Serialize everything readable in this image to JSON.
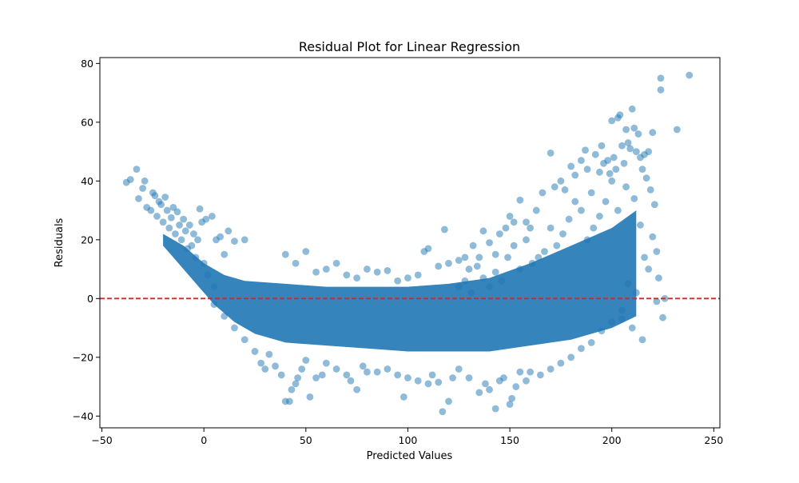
{
  "chart_data": {
    "type": "scatter",
    "title": "Residual Plot for Linear Regression",
    "xlabel": "Predicted Values",
    "ylabel": "Residuals",
    "xlim": [
      -51,
      253
    ],
    "ylim": [
      -44,
      82
    ],
    "xticks": [
      -50,
      0,
      50,
      100,
      150,
      200,
      250
    ],
    "yticks": [
      -40,
      -20,
      0,
      20,
      40,
      60,
      80
    ],
    "xtick_labels": [
      "−50",
      "0",
      "50",
      "100",
      "150",
      "200",
      "250"
    ],
    "ytick_labels": [
      "−40",
      "−20",
      "0",
      "20",
      "40",
      "60",
      "80"
    ],
    "reference_line": {
      "y": 0,
      "style": "dashed",
      "color": "#d62728"
    },
    "grid": false,
    "marker_color": "#1f77b4",
    "marker_alpha": 0.5,
    "series": [
      {
        "values_note": "",
        "points": [
          [
            -38,
            39.5
          ],
          [
            -36,
            40.5
          ],
          [
            -33,
            44
          ],
          [
            -32,
            34
          ],
          [
            -30,
            37.5
          ],
          [
            -29,
            40
          ],
          [
            -28,
            31
          ],
          [
            -26,
            30
          ],
          [
            -25,
            36
          ],
          [
            -24,
            35
          ],
          [
            -23,
            28
          ],
          [
            -22,
            33
          ],
          [
            -21,
            32
          ],
          [
            -20,
            26
          ],
          [
            -19,
            34.5
          ],
          [
            -18,
            30
          ],
          [
            -17,
            24
          ],
          [
            -16,
            27.5
          ],
          [
            -15,
            31
          ],
          [
            -14,
            22
          ],
          [
            -13,
            29.5
          ],
          [
            -12,
            25
          ],
          [
            -11,
            20
          ],
          [
            -10,
            27
          ],
          [
            -9,
            23
          ],
          [
            -8,
            17
          ],
          [
            -7,
            25
          ],
          [
            -6,
            18
          ],
          [
            -5,
            22
          ],
          [
            -4,
            14
          ],
          [
            -3,
            20
          ],
          [
            -2,
            30.5
          ],
          [
            -1,
            26
          ],
          [
            0,
            12
          ],
          [
            1,
            27
          ],
          [
            2,
            8
          ],
          [
            4,
            28
          ],
          [
            5,
            4
          ],
          [
            6,
            20
          ],
          [
            8,
            21
          ],
          [
            10,
            15
          ],
          [
            12,
            23
          ],
          [
            15,
            19.5
          ],
          [
            20,
            20
          ],
          [
            5,
            -2
          ],
          [
            10,
            -6
          ],
          [
            15,
            -10
          ],
          [
            20,
            -14
          ],
          [
            25,
            -18
          ],
          [
            28,
            -22
          ],
          [
            30,
            -24
          ],
          [
            32,
            -19
          ],
          [
            35,
            -23
          ],
          [
            38,
            -26
          ],
          [
            40,
            -35
          ],
          [
            42,
            -35
          ],
          [
            43,
            -31
          ],
          [
            45,
            -29
          ],
          [
            46,
            -27
          ],
          [
            48,
            -24
          ],
          [
            50,
            -21
          ],
          [
            52,
            -33.5
          ],
          [
            55,
            -27
          ],
          [
            58,
            -26
          ],
          [
            60,
            -22
          ],
          [
            65,
            -24
          ],
          [
            70,
            -26
          ],
          [
            72,
            -28
          ],
          [
            75,
            -31
          ],
          [
            78,
            -23
          ],
          [
            80,
            -25
          ],
          [
            85,
            -25
          ],
          [
            90,
            -24
          ],
          [
            95,
            -26
          ],
          [
            98,
            -33.5
          ],
          [
            100,
            -27
          ],
          [
            105,
            -28
          ],
          [
            110,
            -29
          ],
          [
            112,
            -26
          ],
          [
            115,
            -28.5
          ],
          [
            117,
            -38.5
          ],
          [
            120,
            -35
          ],
          [
            122,
            -27
          ],
          [
            125,
            -24
          ],
          [
            130,
            -27
          ],
          [
            135,
            -32
          ],
          [
            138,
            -29
          ],
          [
            140,
            -31
          ],
          [
            143,
            -37.5
          ],
          [
            145,
            -28
          ],
          [
            147,
            -27
          ],
          [
            150,
            -36
          ],
          [
            151,
            -34
          ],
          [
            153,
            -30
          ],
          [
            155,
            -25
          ],
          [
            158,
            -28
          ],
          [
            160,
            -25
          ],
          [
            165,
            -26
          ],
          [
            170,
            -24
          ],
          [
            175,
            -22
          ],
          [
            180,
            -20
          ],
          [
            185,
            -17
          ],
          [
            190,
            -15
          ],
          [
            195,
            -11
          ],
          [
            200,
            -8
          ],
          [
            205,
            -4
          ],
          [
            40,
            15
          ],
          [
            45,
            12
          ],
          [
            50,
            16
          ],
          [
            55,
            9
          ],
          [
            60,
            10
          ],
          [
            65,
            12
          ],
          [
            70,
            8
          ],
          [
            75,
            7
          ],
          [
            80,
            10
          ],
          [
            85,
            9
          ],
          [
            90,
            9.5
          ],
          [
            95,
            6
          ],
          [
            100,
            7
          ],
          [
            105,
            8
          ],
          [
            108,
            16
          ],
          [
            110,
            17
          ],
          [
            115,
            11
          ],
          [
            118,
            23.5
          ],
          [
            120,
            12
          ],
          [
            125,
            13
          ],
          [
            128,
            14
          ],
          [
            130,
            10
          ],
          [
            132,
            18
          ],
          [
            135,
            14
          ],
          [
            137,
            23
          ],
          [
            140,
            19
          ],
          [
            143,
            15
          ],
          [
            145,
            22
          ],
          [
            148,
            24
          ],
          [
            150,
            28
          ],
          [
            152,
            26
          ],
          [
            155,
            33.5
          ],
          [
            158,
            26
          ],
          [
            160,
            24
          ],
          [
            163,
            30
          ],
          [
            166,
            36
          ],
          [
            170,
            49.5
          ],
          [
            172,
            38
          ],
          [
            175,
            40
          ],
          [
            177,
            37
          ],
          [
            180,
            45
          ],
          [
            182,
            42
          ],
          [
            185,
            47
          ],
          [
            187,
            50.5
          ],
          [
            188,
            44
          ],
          [
            190,
            36
          ],
          [
            192,
            49
          ],
          [
            194,
            43
          ],
          [
            195,
            52
          ],
          [
            196,
            46
          ],
          [
            198,
            47
          ],
          [
            199,
            42.5
          ],
          [
            200,
            60.5
          ],
          [
            201,
            48
          ],
          [
            202,
            44
          ],
          [
            203,
            61.5
          ],
          [
            204,
            62.5
          ],
          [
            205,
            52
          ],
          [
            206,
            46
          ],
          [
            207,
            57.5
          ],
          [
            208,
            53
          ],
          [
            209,
            51
          ],
          [
            210,
            64.5
          ],
          [
            211,
            58
          ],
          [
            212,
            50
          ],
          [
            213,
            56
          ],
          [
            214,
            48
          ],
          [
            215,
            44
          ],
          [
            216,
            49
          ],
          [
            217,
            41
          ],
          [
            218,
            50
          ],
          [
            219,
            37
          ],
          [
            220,
            56.5
          ],
          [
            221,
            32
          ],
          [
            222,
            16
          ],
          [
            223,
            7
          ],
          [
            224,
            75
          ],
          [
            224,
            71
          ],
          [
            225,
            -6.5
          ],
          [
            226,
            0
          ],
          [
            232,
            57.5
          ],
          [
            238,
            76
          ],
          [
            215,
            -14
          ],
          [
            210,
            -10
          ],
          [
            205,
            -7
          ],
          [
            208,
            5
          ],
          [
            212,
            2
          ],
          [
            218,
            10
          ],
          [
            220,
            21
          ],
          [
            216,
            14
          ],
          [
            222,
            -1
          ],
          [
            214,
            25
          ],
          [
            211,
            34
          ],
          [
            207,
            38
          ],
          [
            203,
            30
          ],
          [
            200,
            40
          ],
          [
            197,
            33
          ],
          [
            194,
            28
          ],
          [
            191,
            24
          ],
          [
            188,
            20
          ],
          [
            185,
            30
          ],
          [
            182,
            33
          ],
          [
            179,
            27
          ],
          [
            176,
            22
          ],
          [
            173,
            18
          ],
          [
            170,
            24
          ],
          [
            167,
            16
          ],
          [
            164,
            14
          ],
          [
            161,
            12
          ],
          [
            158,
            20
          ],
          [
            155,
            10
          ],
          [
            152,
            18
          ],
          [
            149,
            14
          ],
          [
            146,
            6
          ],
          [
            143,
            9
          ],
          [
            140,
            4
          ],
          [
            137,
            7
          ],
          [
            134,
            11
          ],
          [
            131,
            2
          ],
          [
            128,
            6
          ],
          [
            125,
            4
          ]
        ]
      }
    ]
  }
}
